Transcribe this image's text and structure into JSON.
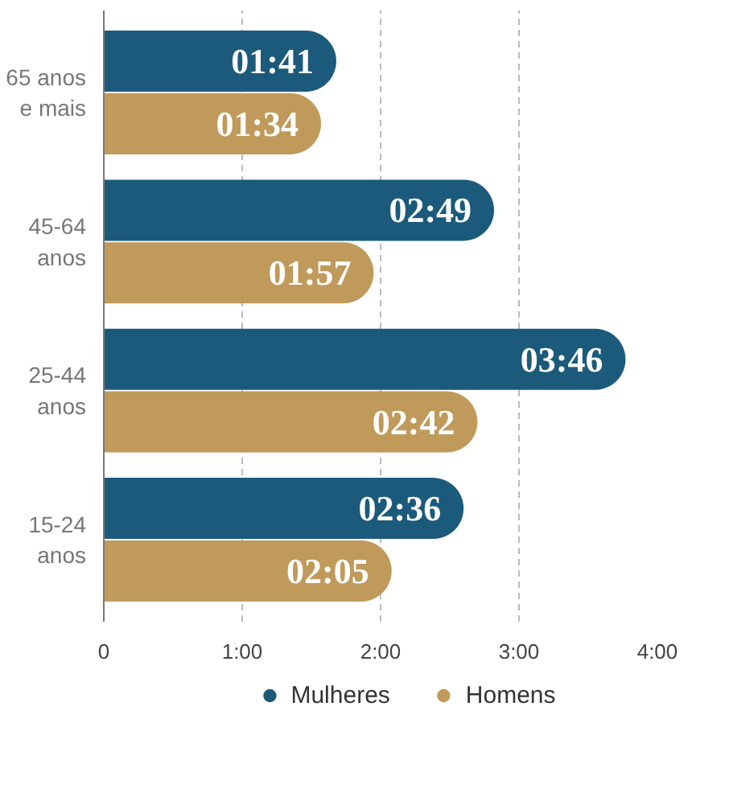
{
  "chart_data": {
    "type": "bar",
    "orientation": "horizontal",
    "categories": [
      "65 anos e mais",
      "45-64 anos",
      "25-44 anos",
      "15-24 anos"
    ],
    "series": [
      {
        "name": "Mulheres",
        "color": "#1c5a7c",
        "values": [
          1.68,
          2.82,
          3.77,
          2.6
        ],
        "value_labels": [
          "01:41",
          "02:49",
          "03:46",
          "02:36"
        ]
      },
      {
        "name": "Homens",
        "color": "#c09a5b",
        "values": [
          1.57,
          1.95,
          2.7,
          2.08
        ],
        "value_labels": [
          "01:34",
          "01:57",
          "02:42",
          "02:05"
        ]
      }
    ],
    "xlim": [
      0,
      4
    ],
    "xticks": [
      0,
      {
        "value": 1,
        "label": "1:00"
      },
      {
        "value": 2,
        "label": "2:00"
      },
      {
        "value": 3,
        "label": "3:00"
      },
      {
        "value": 4,
        "label": "4:00"
      }
    ],
    "grid": "x",
    "legend": "bottom"
  }
}
